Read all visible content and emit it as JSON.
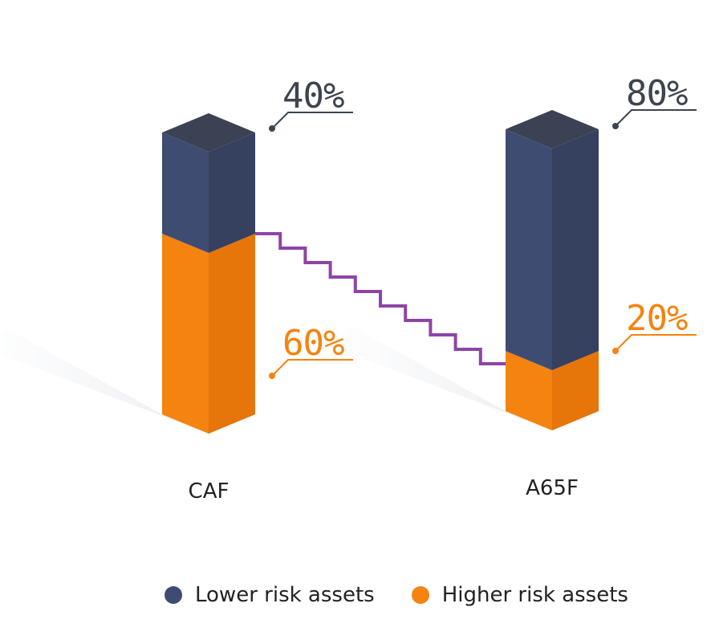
{
  "colors": {
    "lower": "#3f4c72",
    "lower_dark": "#36405f",
    "higher": "#f5830f",
    "higher_dark": "#e6760a",
    "top": "#3b4254",
    "staircase": "#8e44a6",
    "label_lower": "#3d4450",
    "label_higher": "#f5830f"
  },
  "chart_data": {
    "type": "bar",
    "stacked": true,
    "categories": [
      "CAF",
      "A65F"
    ],
    "series": [
      {
        "name": "Lower risk assets",
        "values": [
          40,
          80
        ],
        "labels": [
          "40%",
          "80%"
        ]
      },
      {
        "name": "Higher risk assets",
        "values": [
          60,
          20
        ],
        "labels": [
          "60%",
          "20%"
        ]
      }
    ],
    "ylim": [
      0,
      100
    ],
    "legend": "bottom"
  },
  "legend": [
    {
      "label": "Lower risk assets",
      "color": "#3f4c72"
    },
    {
      "label": "Higher risk assets",
      "color": "#f5830f"
    }
  ]
}
